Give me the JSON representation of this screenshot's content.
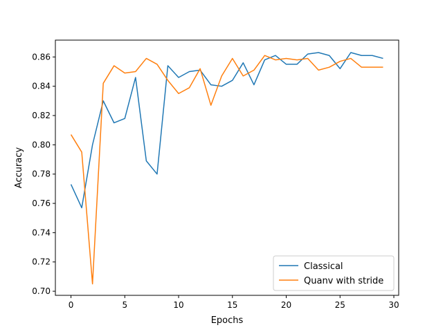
{
  "chart_data": {
    "type": "line",
    "title": "",
    "xlabel": "Epochs",
    "ylabel": "Accuracy",
    "xlim": [
      -1.45,
      30.45
    ],
    "ylim": [
      0.6972,
      0.8715
    ],
    "xticks": [
      0,
      5,
      10,
      15,
      20,
      25,
      30
    ],
    "yticks": [
      0.7,
      0.72,
      0.74,
      0.76,
      0.78,
      0.8,
      0.82,
      0.84,
      0.86
    ],
    "grid": false,
    "legend_position": "lower-right",
    "x": [
      0,
      1,
      2,
      3,
      4,
      5,
      6,
      7,
      8,
      9,
      10,
      11,
      12,
      13,
      14,
      15,
      16,
      17,
      18,
      19,
      20,
      21,
      22,
      23,
      24,
      25,
      26,
      27,
      28,
      29
    ],
    "series": [
      {
        "name": "Classical",
        "color": "#1f77b4",
        "values": [
          0.773,
          0.757,
          0.8,
          0.83,
          0.815,
          0.818,
          0.846,
          0.789,
          0.78,
          0.854,
          0.846,
          0.85,
          0.851,
          0.841,
          0.84,
          0.844,
          0.856,
          0.841,
          0.858,
          0.861,
          0.855,
          0.855,
          0.862,
          0.863,
          0.861,
          0.852,
          0.863,
          0.861,
          0.861,
          0.859
        ]
      },
      {
        "name": "Quanv with stride",
        "color": "#ff7f0e",
        "values": [
          0.807,
          0.795,
          0.705,
          0.842,
          0.854,
          0.849,
          0.85,
          0.859,
          0.855,
          0.844,
          0.835,
          0.839,
          0.852,
          0.827,
          0.847,
          0.859,
          0.847,
          0.851,
          0.861,
          0.858,
          0.859,
          0.858,
          0.859,
          0.851,
          0.853,
          0.857,
          0.859,
          0.853,
          0.853,
          0.853
        ]
      }
    ]
  }
}
